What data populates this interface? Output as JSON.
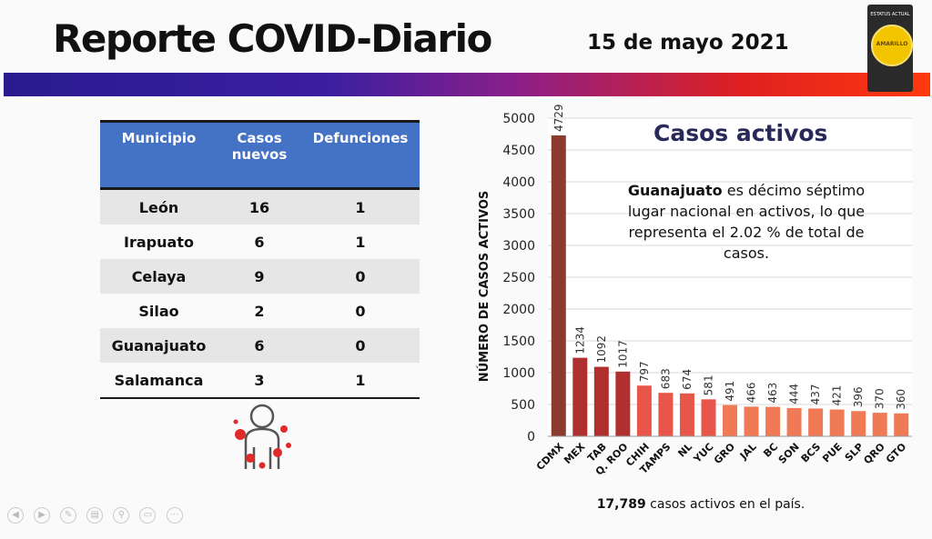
{
  "header": {
    "title": "Reporte COVID-Diario",
    "date": "15 de mayo 2021",
    "badge_top": "ESTATUS ACTUAL",
    "badge_status": "AMARILLO"
  },
  "table": {
    "headers": [
      "Municipio",
      "Casos nuevos",
      "Defunciones"
    ],
    "rows": [
      [
        "León",
        "16",
        "1"
      ],
      [
        "Irapuato",
        "6",
        "1"
      ],
      [
        "Celaya",
        "9",
        "0"
      ],
      [
        "Silao",
        "2",
        "0"
      ],
      [
        "Guanajuato",
        "6",
        "0"
      ],
      [
        "Salamanca",
        "3",
        "1"
      ]
    ]
  },
  "note": {
    "bold": "Guanajuato",
    "rest": " es décimo séptimo lugar nacional en activos, lo que representa el 2.02 % de total de casos."
  },
  "footer": {
    "bold": "17,789",
    "rest": " casos activos en el país."
  },
  "chart_data": {
    "type": "bar",
    "title": "Casos activos",
    "ylabel": "NÚMERO DE CASOS ACTIVOS",
    "xlabel": "",
    "ylim": [
      0,
      5000
    ],
    "yticks": [
      0,
      500,
      1000,
      1500,
      2000,
      2500,
      3000,
      3500,
      4000,
      4500,
      5000
    ],
    "categories": [
      "CDMX",
      "MEX",
      "TAB",
      "Q. ROO",
      "CHIH",
      "TAMPS",
      "NL",
      "YUC",
      "GRO",
      "JAL",
      "BC",
      "SON",
      "BCS",
      "PUE",
      "SLP",
      "QRO",
      "GTO"
    ],
    "values": [
      4729,
      1234,
      1092,
      1017,
      797,
      683,
      674,
      581,
      491,
      466,
      463,
      444,
      437,
      421,
      396,
      370,
      360
    ],
    "colors": [
      "#8b3a2e",
      "#b03030",
      "#b03030",
      "#b03030",
      "#e8564a",
      "#e8564a",
      "#e8564a",
      "#e8564a",
      "#f07a55",
      "#f07a55",
      "#f07a55",
      "#f07a55",
      "#f07a55",
      "#f07a55",
      "#f07a55",
      "#f07a55",
      "#f07a55"
    ],
    "grid": true
  }
}
